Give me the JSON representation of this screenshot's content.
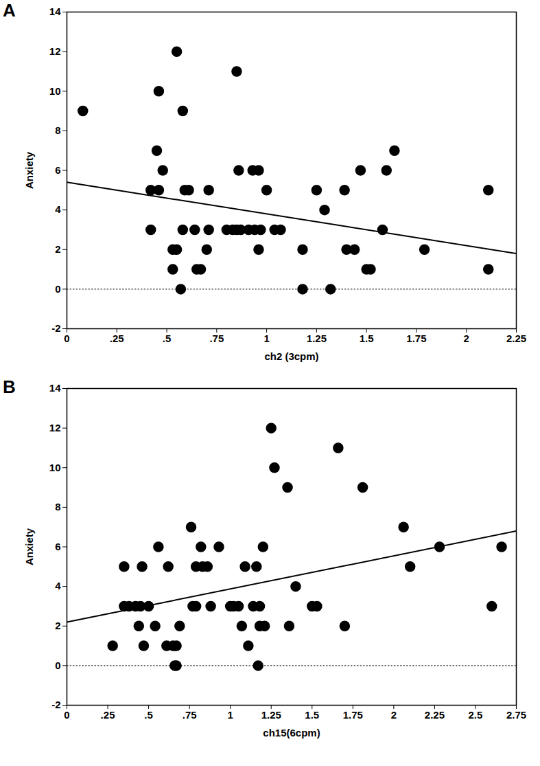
{
  "chart_data": [
    {
      "type": "scatter",
      "title": "A",
      "x_label": "ch2 (3cpm)",
      "y_label": "Anxiety",
      "xlim": [
        0,
        2.25
      ],
      "ylim": [
        -2,
        14
      ],
      "xticks": [
        0,
        {
          "value": 0.25,
          "label": ".25"
        },
        {
          "value": 0.5,
          "label": ".5"
        },
        {
          "value": 0.75,
          "label": ".75"
        },
        1,
        1.25,
        1.5,
        1.75,
        2,
        2.25
      ],
      "yticks": [
        -2,
        0,
        2,
        4,
        6,
        8,
        10,
        12,
        14
      ],
      "series": [
        {
          "type": "scatter",
          "color": "#000000",
          "marker": "circle",
          "x": [
            0.08,
            0.42,
            0.42,
            0.45,
            0.46,
            0.46,
            0.48,
            0.53,
            0.53,
            0.55,
            0.55,
            0.57,
            0.58,
            0.58,
            0.59,
            0.61,
            0.64,
            0.65,
            0.67,
            0.7,
            0.71,
            0.71,
            0.8,
            0.83,
            0.85,
            0.85,
            0.86,
            0.87,
            0.91,
            0.93,
            0.94,
            0.96,
            0.96,
            0.97,
            1.0,
            1.04,
            1.07,
            1.18,
            1.18,
            1.25,
            1.29,
            1.32,
            1.39,
            1.4,
            1.44,
            1.47,
            1.5,
            1.52,
            1.58,
            1.6,
            1.64,
            1.79,
            2.11,
            2.11
          ],
          "values": [
            9,
            5,
            3,
            7,
            10,
            5,
            6,
            1,
            2,
            2,
            12,
            0,
            3,
            9,
            5,
            5,
            3,
            1,
            1,
            2,
            3,
            5,
            3,
            3,
            11,
            3,
            6,
            3,
            3,
            6,
            3,
            6,
            2,
            3,
            5,
            3,
            3,
            2,
            0,
            5,
            4,
            0,
            5,
            2,
            2,
            6,
            1,
            1,
            3,
            6,
            7,
            2,
            5,
            1
          ]
        },
        {
          "type": "line",
          "color": "#000000",
          "line_style": "solid",
          "x": [
            0,
            2.25
          ],
          "values": [
            5.4,
            1.8
          ]
        },
        {
          "type": "line",
          "color": "#000000",
          "line_style": "dotted",
          "x": [
            0,
            2.25
          ],
          "values": [
            0,
            0
          ]
        }
      ]
    },
    {
      "type": "scatter",
      "title": "B",
      "x_label": "ch15(6cpm)",
      "y_label": "Anxiety",
      "xlim": [
        0,
        2.75
      ],
      "ylim": [
        -2,
        14
      ],
      "xticks": [
        0,
        {
          "value": 0.25,
          "label": ".25"
        },
        {
          "value": 0.5,
          "label": ".5"
        },
        {
          "value": 0.75,
          "label": ".75"
        },
        1,
        1.25,
        1.5,
        1.75,
        2,
        2.25,
        2.5,
        2.75
      ],
      "yticks": [
        -2,
        0,
        2,
        4,
        6,
        8,
        10,
        12,
        14
      ],
      "series": [
        {
          "type": "scatter",
          "color": "#000000",
          "marker": "circle",
          "x": [
            0.28,
            0.35,
            0.35,
            0.38,
            0.42,
            0.44,
            0.45,
            0.46,
            0.47,
            0.5,
            0.54,
            0.56,
            0.61,
            0.62,
            0.65,
            0.66,
            0.67,
            0.67,
            0.69,
            0.76,
            0.77,
            0.79,
            0.79,
            0.82,
            0.83,
            0.86,
            0.88,
            0.93,
            1.0,
            1.02,
            1.05,
            1.07,
            1.09,
            1.11,
            1.14,
            1.16,
            1.17,
            1.18,
            1.18,
            1.2,
            1.21,
            1.25,
            1.27,
            1.35,
            1.36,
            1.4,
            1.5,
            1.53,
            1.66,
            1.7,
            1.81,
            2.06,
            2.1,
            2.28,
            2.6,
            2.66
          ],
          "values": [
            1,
            3,
            5,
            3,
            3,
            2,
            3,
            5,
            1,
            3,
            2,
            6,
            1,
            5,
            1,
            0,
            0,
            1,
            2,
            7,
            3,
            3,
            5,
            6,
            5,
            5,
            3,
            6,
            3,
            3,
            3,
            2,
            5,
            1,
            3,
            5,
            0,
            2,
            3,
            6,
            2,
            12,
            10,
            9,
            2,
            4,
            3,
            3,
            11,
            2,
            9,
            7,
            5,
            6,
            3,
            6
          ]
        },
        {
          "type": "line",
          "color": "#000000",
          "line_style": "solid",
          "x": [
            0,
            2.75
          ],
          "values": [
            2.2,
            6.8
          ]
        },
        {
          "type": "line",
          "color": "#000000",
          "line_style": "dotted",
          "x": [
            0,
            2.75
          ],
          "values": [
            0,
            0
          ]
        }
      ]
    }
  ]
}
